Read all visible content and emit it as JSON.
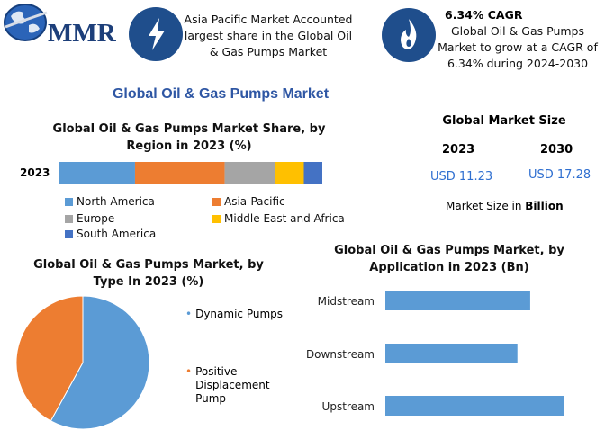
{
  "header": {
    "logo_text": "MMR",
    "callout_1": "Asia Pacific Market Accounted largest share in the Global Oil & Gas Pumps Market",
    "callout_2_title": "6.34% CAGR",
    "callout_2_body": "Global Oil & Gas Pumps Market to grow at a CAGR of 6.34% during 2024-2030"
  },
  "main_title": "Global Oil & Gas Pumps Market",
  "market_size": {
    "title": "Global Market Size",
    "year_1": "2023",
    "year_2": "2030",
    "value_1": "USD 11.23",
    "value_2": "USD 17.28",
    "note_prefix": "Market Size in ",
    "note_unit": "Billion"
  },
  "colors": {
    "north_america": "#5b9bd5",
    "asia_pacific": "#ed7d31",
    "europe": "#a5a5a5",
    "mea": "#ffc000",
    "south_america": "#4472c4",
    "icon_bg": "#1f4e8c"
  },
  "chart_data": [
    {
      "type": "bar",
      "orientation": "horizontal-stacked",
      "title": "Global Oil & Gas Pumps Market Share, by Region in 2023 (%)",
      "categories": [
        "2023"
      ],
      "series": [
        {
          "name": "North America",
          "values": [
            29
          ]
        },
        {
          "name": "Asia-Pacific",
          "values": [
            34
          ]
        },
        {
          "name": "Europe",
          "values": [
            19
          ]
        },
        {
          "name": "Middle East and Africa",
          "values": [
            11
          ]
        },
        {
          "name": "South America",
          "values": [
            7
          ]
        }
      ],
      "xlim": [
        0,
        100
      ]
    },
    {
      "type": "pie",
      "title": "Global Oil & Gas Pumps Market, by Type In 2023 (%)",
      "labels": [
        "Dynamic Pumps",
        "Positive Displacement Pump"
      ],
      "values": [
        58,
        42
      ]
    },
    {
      "type": "bar",
      "orientation": "horizontal",
      "title": "Global Oil & Gas Pumps Market, by Application in 2023 (Bn)",
      "categories": [
        "Midstream",
        "Downstream",
        "Upstream"
      ],
      "values": [
        3.4,
        3.1,
        4.2
      ],
      "xlim": [
        0,
        4.5
      ]
    }
  ]
}
